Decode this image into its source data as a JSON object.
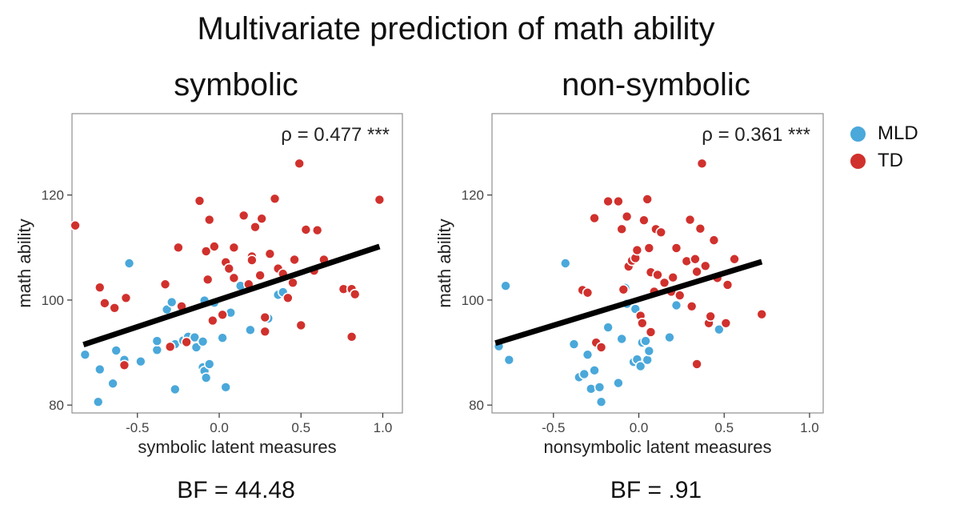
{
  "title": "Multivariate prediction of math ability",
  "colors": {
    "MLD": "#4AA8DA",
    "TD": "#D0312D",
    "line": "#000000"
  },
  "legend": [
    {
      "name": "MLD",
      "label": "MLD",
      "color": "#4AA8DA"
    },
    {
      "name": "TD",
      "label": "TD",
      "color": "#D0312D"
    }
  ],
  "chart_data": [
    {
      "type": "scatter",
      "title": "symbolic",
      "xlabel": "symbolic latent measures",
      "ylabel": "math ability",
      "annotation": "ρ = 0.477 ***",
      "bf": "BF = 44.48",
      "xlim": [
        -0.9,
        1.12
      ],
      "ylim": [
        78.5,
        135.5
      ],
      "xticks": [
        -0.5,
        0.0,
        0.5,
        1.0
      ],
      "xtick_labels": [
        "-0.5",
        "0.0",
        "0.5",
        "1.0"
      ],
      "yticks": [
        80,
        100,
        120
      ],
      "ytick_labels": [
        "80",
        "100",
        "120"
      ],
      "regression": {
        "x": [
          -0.83,
          0.98
        ],
        "y": [
          91.5,
          110.2
        ]
      },
      "series": [
        {
          "name": "MLD",
          "points": [
            [
              -0.82,
              89.6
            ],
            [
              -0.73,
              86.8
            ],
            [
              -0.74,
              80.6
            ],
            [
              -0.65,
              84.1
            ],
            [
              -0.63,
              90.4
            ],
            [
              -0.58,
              88.6
            ],
            [
              -0.55,
              107.0
            ],
            [
              -0.48,
              88.3
            ],
            [
              -0.38,
              90.5
            ],
            [
              -0.38,
              92.2
            ],
            [
              -0.32,
              98.2
            ],
            [
              -0.29,
              99.6
            ],
            [
              -0.27,
              83.0
            ],
            [
              -0.27,
              91.6
            ],
            [
              -0.22,
              92.3
            ],
            [
              -0.19,
              93.0
            ],
            [
              -0.15,
              92.9
            ],
            [
              -0.14,
              91.0
            ],
            [
              -0.1,
              87.2
            ],
            [
              -0.1,
              92.1
            ],
            [
              -0.09,
              99.9
            ],
            [
              -0.09,
              86.5
            ],
            [
              -0.08,
              85.2
            ],
            [
              -0.06,
              87.8
            ],
            [
              -0.03,
              99.5
            ],
            [
              0.02,
              92.8
            ],
            [
              0.04,
              83.4
            ],
            [
              0.07,
              97.6
            ],
            [
              0.13,
              102.7
            ],
            [
              0.19,
              94.3
            ],
            [
              0.3,
              96.5
            ],
            [
              0.36,
              101.0
            ],
            [
              0.39,
              101.5
            ]
          ]
        },
        {
          "name": "TD",
          "points": [
            [
              -0.88,
              114.2
            ],
            [
              -0.73,
              102.4
            ],
            [
              -0.7,
              99.4
            ],
            [
              -0.64,
              98.5
            ],
            [
              -0.58,
              87.6
            ],
            [
              -0.57,
              100.4
            ],
            [
              -0.33,
              103.0
            ],
            [
              -0.3,
              91.1
            ],
            [
              -0.25,
              110.0
            ],
            [
              -0.23,
              98.8
            ],
            [
              -0.2,
              92.0
            ],
            [
              -0.12,
              118.9
            ],
            [
              -0.08,
              109.3
            ],
            [
              -0.07,
              103.9
            ],
            [
              -0.06,
              115.3
            ],
            [
              -0.04,
              96.1
            ],
            [
              -0.03,
              110.2
            ],
            [
              0.02,
              97.2
            ],
            [
              0.04,
              107.2
            ],
            [
              0.06,
              106.0
            ],
            [
              0.09,
              110.0
            ],
            [
              0.09,
              104.2
            ],
            [
              0.15,
              116.1
            ],
            [
              0.18,
              103.0
            ],
            [
              0.2,
              108.3
            ],
            [
              0.2,
              107.6
            ],
            [
              0.22,
              113.9
            ],
            [
              0.25,
              104.7
            ],
            [
              0.26,
              115.5
            ],
            [
              0.28,
              96.7
            ],
            [
              0.28,
              94.0
            ],
            [
              0.31,
              108.8
            ],
            [
              0.34,
              119.3
            ],
            [
              0.36,
              106.0
            ],
            [
              0.39,
              105.0
            ],
            [
              0.42,
              100.4
            ],
            [
              0.45,
              103.3
            ],
            [
              0.46,
              107.7
            ],
            [
              0.49,
              126.0
            ],
            [
              0.5,
              95.2
            ],
            [
              0.53,
              113.4
            ],
            [
              0.58,
              105.6
            ],
            [
              0.6,
              113.3
            ],
            [
              0.64,
              107.7
            ],
            [
              0.76,
              102.1
            ],
            [
              0.81,
              102.1
            ],
            [
              0.81,
              93.0
            ],
            [
              0.83,
              101.1
            ],
            [
              0.98,
              119.1
            ]
          ]
        }
      ]
    },
    {
      "type": "scatter",
      "title": "non-symbolic",
      "xlabel": "nonsymbolic latent measures",
      "ylabel": "math ability",
      "annotation": "ρ = 0.361 ***",
      "bf": "BF = .91",
      "xlim": [
        -0.86,
        1.08
      ],
      "ylim": [
        78.5,
        135.5
      ],
      "xticks": [
        -0.5,
        0.0,
        0.5,
        1.0
      ],
      "xtick_labels": [
        "-0.5",
        "0.0",
        "0.5",
        "1.0"
      ],
      "yticks": [
        80,
        100,
        120
      ],
      "ytick_labels": [
        "80",
        "100",
        "120"
      ],
      "regression": {
        "x": [
          -0.84,
          0.72
        ],
        "y": [
          91.8,
          107.3
        ]
      },
      "series": [
        {
          "name": "MLD",
          "points": [
            [
              -0.82,
              91.2
            ],
            [
              -0.78,
              102.7
            ],
            [
              -0.76,
              88.6
            ],
            [
              -0.43,
              107.0
            ],
            [
              -0.38,
              91.6
            ],
            [
              -0.35,
              85.3
            ],
            [
              -0.32,
              85.9
            ],
            [
              -0.3,
              89.6
            ],
            [
              -0.28,
              83.1
            ],
            [
              -0.26,
              86.6
            ],
            [
              -0.25,
              91.6
            ],
            [
              -0.23,
              83.4
            ],
            [
              -0.22,
              80.6
            ],
            [
              -0.18,
              94.8
            ],
            [
              -0.12,
              84.2
            ],
            [
              -0.1,
              92.6
            ],
            [
              -0.08,
              102.3
            ],
            [
              -0.07,
              99.3
            ],
            [
              -0.03,
              88.2
            ],
            [
              -0.02,
              98.3
            ],
            [
              -0.01,
              88.7
            ],
            [
              0.01,
              87.4
            ],
            [
              0.02,
              91.9
            ],
            [
              0.04,
              92.2
            ],
            [
              0.05,
              88.6
            ],
            [
              0.06,
              90.3
            ],
            [
              0.18,
              92.9
            ],
            [
              0.22,
              99.0
            ],
            [
              0.47,
              94.4
            ]
          ]
        },
        {
          "name": "TD",
          "points": [
            [
              -0.33,
              101.9
            ],
            [
              -0.3,
              101.4
            ],
            [
              -0.26,
              115.6
            ],
            [
              -0.25,
              91.9
            ],
            [
              -0.22,
              91.0
            ],
            [
              -0.18,
              118.8
            ],
            [
              -0.12,
              118.8
            ],
            [
              -0.1,
              113.5
            ],
            [
              -0.09,
              102.0
            ],
            [
              -0.07,
              115.9
            ],
            [
              -0.06,
              106.4
            ],
            [
              -0.04,
              107.5
            ],
            [
              -0.02,
              108.0
            ],
            [
              -0.01,
              109.5
            ],
            [
              0.01,
              97.0
            ],
            [
              0.02,
              95.6
            ],
            [
              0.03,
              115.2
            ],
            [
              0.05,
              119.2
            ],
            [
              0.06,
              109.9
            ],
            [
              0.07,
              93.9
            ],
            [
              0.07,
              105.3
            ],
            [
              0.09,
              101.6
            ],
            [
              0.1,
              113.5
            ],
            [
              0.11,
              104.8
            ],
            [
              0.13,
              112.9
            ],
            [
              0.15,
              103.3
            ],
            [
              0.19,
              101.6
            ],
            [
              0.2,
              104.3
            ],
            [
              0.22,
              109.9
            ],
            [
              0.24,
              100.9
            ],
            [
              0.28,
              107.4
            ],
            [
              0.3,
              115.3
            ],
            [
              0.31,
              98.8
            ],
            [
              0.33,
              107.8
            ],
            [
              0.34,
              87.8
            ],
            [
              0.34,
              105.4
            ],
            [
              0.36,
              113.6
            ],
            [
              0.37,
              126.0
            ],
            [
              0.39,
              106.5
            ],
            [
              0.41,
              95.6
            ],
            [
              0.42,
              96.9
            ],
            [
              0.44,
              111.4
            ],
            [
              0.46,
              104.2
            ],
            [
              0.51,
              95.6
            ],
            [
              0.52,
              102.9
            ],
            [
              0.56,
              107.8
            ],
            [
              0.72,
              97.3
            ]
          ]
        }
      ]
    }
  ]
}
